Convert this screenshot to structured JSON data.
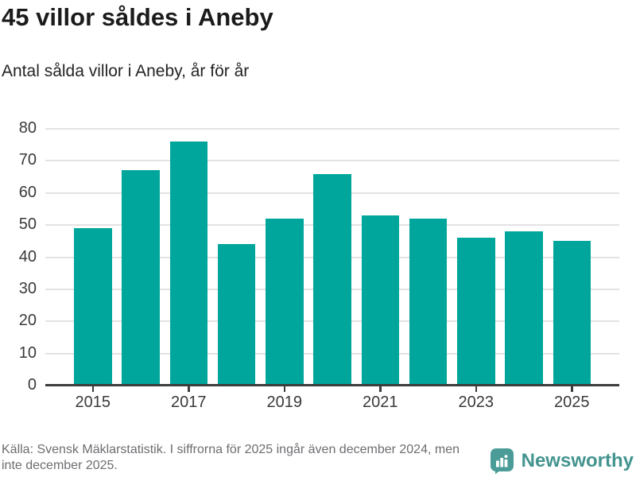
{
  "chart_data": {
    "type": "bar",
    "title": "45 villor såldes i Aneby",
    "subtitle": "Antal sålda villor i Aneby, år för år",
    "categories": [
      "2015",
      "2016",
      "2017",
      "2018",
      "2019",
      "2020",
      "2021",
      "2022",
      "2023",
      "2024",
      "2025"
    ],
    "values": [
      49,
      67,
      76,
      44,
      52,
      66,
      53,
      52,
      46,
      48,
      45
    ],
    "xlabel": "",
    "ylabel": "",
    "ylim": [
      0,
      80
    ],
    "ytick_step": 10,
    "xtick_labels_shown": [
      "2015",
      "2017",
      "2019",
      "2021",
      "2023",
      "2025"
    ],
    "grid": "horizontal",
    "legend": "none",
    "bar_color": "#00a69b"
  },
  "footer": {
    "source": "Källa: Svensk Mäklarstatistik. I siffrorna för 2025 ingår även december 2024, men\ninte december 2025.",
    "brand": "Newsworthy"
  },
  "colors": {
    "bar": "#00a69b",
    "axis": "#3d3d3d",
    "gridline": "#e3e3e3",
    "title_text": "#1b1b1b",
    "label_text": "#3a3a3a",
    "footer_text": "#6d6d72",
    "brand_teal": "#43948f",
    "brand_icon": "#4b9c98",
    "background": "#ffffff"
  }
}
